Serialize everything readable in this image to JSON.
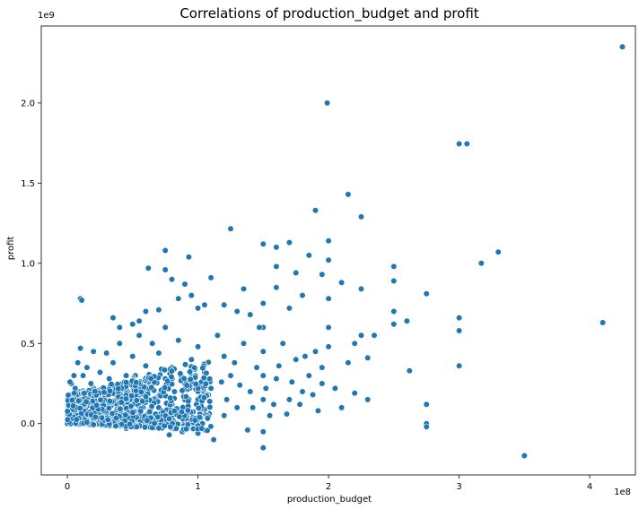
{
  "chart_data": {
    "type": "scatter",
    "title": "Correlations of production_budget and profit",
    "xlabel": "production_budget",
    "ylabel": "profit",
    "x_offset_label": "1e8",
    "y_offset_label": "1e9",
    "xlim": [
      -0.2,
      4.35
    ],
    "ylim": [
      -0.32,
      2.48
    ],
    "xticks": [
      0,
      1,
      2,
      3,
      4
    ],
    "xtick_labels": [
      "0",
      "1",
      "2",
      "3",
      "4"
    ],
    "yticks": [
      0.0,
      0.5,
      1.0,
      1.5,
      2.0
    ],
    "ytick_labels": [
      "0.0",
      "0.5",
      "1.0",
      "1.5",
      "2.0"
    ],
    "grid": false,
    "legend": "none",
    "marker_color": "#1f77b4",
    "marker_edge": "#ffffff",
    "x_units": "1e8 USD",
    "y_units": "1e9 USD",
    "points": [
      [
        4.25,
        2.35
      ],
      [
        1.99,
        2.0
      ],
      [
        3.0,
        1.745
      ],
      [
        3.06,
        1.745
      ],
      [
        2.15,
        1.43
      ],
      [
        2.25,
        1.29
      ],
      [
        1.9,
        1.33
      ],
      [
        1.25,
        1.215
      ],
      [
        3.3,
        1.07
      ],
      [
        3.17,
        1.0
      ],
      [
        2.0,
        1.14
      ],
      [
        1.6,
        1.1
      ],
      [
        1.5,
        1.12
      ],
      [
        1.7,
        1.13
      ],
      [
        1.85,
        1.05
      ],
      [
        0.75,
        1.08
      ],
      [
        0.93,
        1.04
      ],
      [
        0.75,
        0.96
      ],
      [
        0.62,
        0.97
      ],
      [
        1.6,
        0.98
      ],
      [
        2.5,
        0.98
      ],
      [
        2.0,
        1.02
      ],
      [
        2.1,
        0.88
      ],
      [
        1.95,
        0.93
      ],
      [
        1.75,
        0.94
      ],
      [
        2.5,
        0.89
      ],
      [
        2.75,
        0.81
      ],
      [
        1.1,
        0.91
      ],
      [
        0.8,
        0.9
      ],
      [
        0.9,
        0.87
      ],
      [
        0.1,
        0.78
      ],
      [
        0.11,
        0.77
      ],
      [
        2.25,
        0.84
      ],
      [
        1.6,
        0.85
      ],
      [
        1.35,
        0.84
      ],
      [
        4.1,
        0.63
      ],
      [
        3.0,
        0.66
      ],
      [
        2.6,
        0.64
      ],
      [
        2.5,
        0.7
      ],
      [
        2.5,
        0.62
      ],
      [
        2.25,
        0.55
      ],
      [
        2.0,
        0.78
      ],
      [
        2.0,
        0.6
      ],
      [
        1.8,
        0.8
      ],
      [
        1.7,
        0.72
      ],
      [
        1.5,
        0.75
      ],
      [
        1.5,
        0.6
      ],
      [
        1.4,
        0.68
      ],
      [
        1.3,
        0.7
      ],
      [
        1.2,
        0.74
      ],
      [
        1.05,
        0.74
      ],
      [
        1.0,
        0.72
      ],
      [
        0.95,
        0.8
      ],
      [
        0.85,
        0.78
      ],
      [
        0.7,
        0.71
      ],
      [
        0.6,
        0.7
      ],
      [
        0.55,
        0.64
      ],
      [
        0.5,
        0.62
      ],
      [
        0.35,
        0.66
      ],
      [
        0.4,
        0.6
      ],
      [
        3.5,
        -0.2
      ],
      [
        3.0,
        0.58
      ],
      [
        3.0,
        0.36
      ],
      [
        2.75,
        0.12
      ],
      [
        2.75,
        0.0
      ],
      [
        2.75,
        -0.02
      ],
      [
        2.62,
        0.33
      ],
      [
        2.3,
        0.41
      ],
      [
        2.3,
        0.15
      ],
      [
        2.2,
        0.19
      ],
      [
        2.1,
        0.1
      ],
      [
        2.05,
        0.22
      ],
      [
        2.2,
        0.5
      ],
      [
        2.15,
        0.38
      ],
      [
        2.35,
        0.55
      ],
      [
        1.95,
        0.25
      ],
      [
        1.95,
        0.35
      ],
      [
        2.0,
        0.48
      ],
      [
        1.9,
        0.45
      ],
      [
        1.85,
        0.3
      ],
      [
        1.8,
        0.2
      ],
      [
        1.75,
        0.4
      ],
      [
        1.7,
        0.15
      ],
      [
        1.65,
        0.5
      ],
      [
        1.6,
        0.28
      ],
      [
        1.55,
        0.05
      ],
      [
        1.5,
        0.45
      ],
      [
        1.5,
        0.3
      ],
      [
        1.5,
        0.15
      ],
      [
        1.5,
        -0.05
      ],
      [
        1.5,
        -0.15
      ],
      [
        1.45,
        0.35
      ],
      [
        1.4,
        0.2
      ],
      [
        1.35,
        0.5
      ],
      [
        1.3,
        0.1
      ],
      [
        1.25,
        0.3
      ],
      [
        1.2,
        0.42
      ],
      [
        1.2,
        0.05
      ],
      [
        1.15,
        0.55
      ],
      [
        1.1,
        0.22
      ],
      [
        1.05,
        0.32
      ],
      [
        1.0,
        0.48
      ],
      [
        1.0,
        0.15
      ],
      [
        1.0,
        -0.06
      ],
      [
        0.95,
        0.4
      ],
      [
        0.9,
        0.25
      ],
      [
        0.88,
        -0.05
      ],
      [
        0.85,
        0.52
      ],
      [
        0.8,
        0.35
      ],
      [
        0.8,
        0.12
      ],
      [
        0.78,
        -0.07
      ],
      [
        0.75,
        0.6
      ],
      [
        0.75,
        0.28
      ],
      [
        0.7,
        0.44
      ],
      [
        0.7,
        0.1
      ],
      [
        0.65,
        0.5
      ],
      [
        0.65,
        0.22
      ],
      [
        0.6,
        0.36
      ],
      [
        0.6,
        -0.02
      ],
      [
        0.55,
        0.55
      ],
      [
        0.55,
        0.18
      ],
      [
        0.5,
        0.42
      ],
      [
        0.5,
        0.08
      ],
      [
        0.45,
        0.3
      ],
      [
        0.45,
        -0.03
      ],
      [
        0.4,
        0.5
      ],
      [
        0.4,
        0.2
      ],
      [
        0.35,
        0.38
      ],
      [
        0.35,
        0.05
      ],
      [
        0.3,
        0.44
      ],
      [
        0.3,
        0.15
      ],
      [
        0.25,
        0.32
      ],
      [
        0.25,
        0.0
      ],
      [
        0.2,
        0.45
      ],
      [
        0.2,
        0.22
      ],
      [
        0.15,
        0.35
      ],
      [
        0.15,
        0.05
      ],
      [
        0.1,
        0.47
      ],
      [
        0.1,
        0.2
      ],
      [
        0.08,
        0.38
      ],
      [
        0.05,
        0.3
      ],
      [
        0.05,
        0.12
      ],
      [
        0.03,
        0.25
      ],
      [
        0.02,
        0.18
      ],
      [
        0.0,
        0.05
      ],
      [
        0.0,
        0.0
      ],
      [
        0.01,
        0.1
      ],
      [
        0.02,
        0.26
      ],
      [
        0.06,
        0.22
      ],
      [
        0.12,
        0.3
      ],
      [
        0.18,
        0.25
      ],
      [
        0.22,
        0.1
      ],
      [
        0.28,
        0.2
      ],
      [
        0.32,
        0.28
      ],
      [
        0.38,
        0.15
      ],
      [
        0.42,
        0.25
      ],
      [
        0.48,
        0.18
      ],
      [
        0.52,
        0.3
      ],
      [
        0.58,
        0.1
      ],
      [
        0.62,
        0.26
      ],
      [
        0.68,
        0.16
      ],
      [
        0.72,
        0.34
      ],
      [
        0.82,
        0.2
      ],
      [
        0.87,
        0.3
      ],
      [
        0.92,
        0.1
      ],
      [
        0.97,
        0.24
      ],
      [
        1.02,
        0.08
      ],
      [
        1.08,
        0.18
      ],
      [
        1.12,
        -0.1
      ],
      [
        1.18,
        0.26
      ],
      [
        1.22,
        0.15
      ],
      [
        1.28,
        0.38
      ],
      [
        1.32,
        0.24
      ],
      [
        1.38,
        -0.04
      ],
      [
        1.42,
        0.1
      ],
      [
        1.47,
        0.6
      ],
      [
        1.52,
        0.22
      ],
      [
        1.58,
        0.12
      ],
      [
        1.62,
        0.36
      ],
      [
        1.68,
        0.06
      ],
      [
        1.72,
        0.26
      ],
      [
        1.78,
        0.12
      ],
      [
        1.82,
        0.42
      ],
      [
        1.88,
        0.18
      ],
      [
        1.92,
        0.08
      ],
      [
        0.07,
        0.02
      ],
      [
        0.09,
        0.08
      ],
      [
        0.11,
        0.04
      ],
      [
        0.13,
        0.12
      ],
      [
        0.16,
        0.02
      ],
      [
        0.19,
        0.14
      ],
      [
        0.21,
        0.06
      ],
      [
        0.24,
        0.18
      ],
      [
        0.27,
        0.08
      ],
      [
        0.29,
        0.03
      ],
      [
        0.33,
        0.12
      ],
      [
        0.36,
        0.22
      ],
      [
        0.39,
        0.07
      ],
      [
        0.43,
        0.14
      ],
      [
        0.46,
        0.2
      ],
      [
        0.49,
        0.03
      ],
      [
        0.53,
        0.12
      ],
      [
        0.56,
        0.04
      ],
      [
        0.59,
        0.2
      ],
      [
        0.63,
        0.06
      ],
      [
        0.66,
        0.14
      ],
      [
        0.69,
        0.03
      ],
      [
        0.73,
        0.2
      ],
      [
        0.77,
        0.06
      ],
      [
        0.81,
        0.02
      ]
    ]
  }
}
